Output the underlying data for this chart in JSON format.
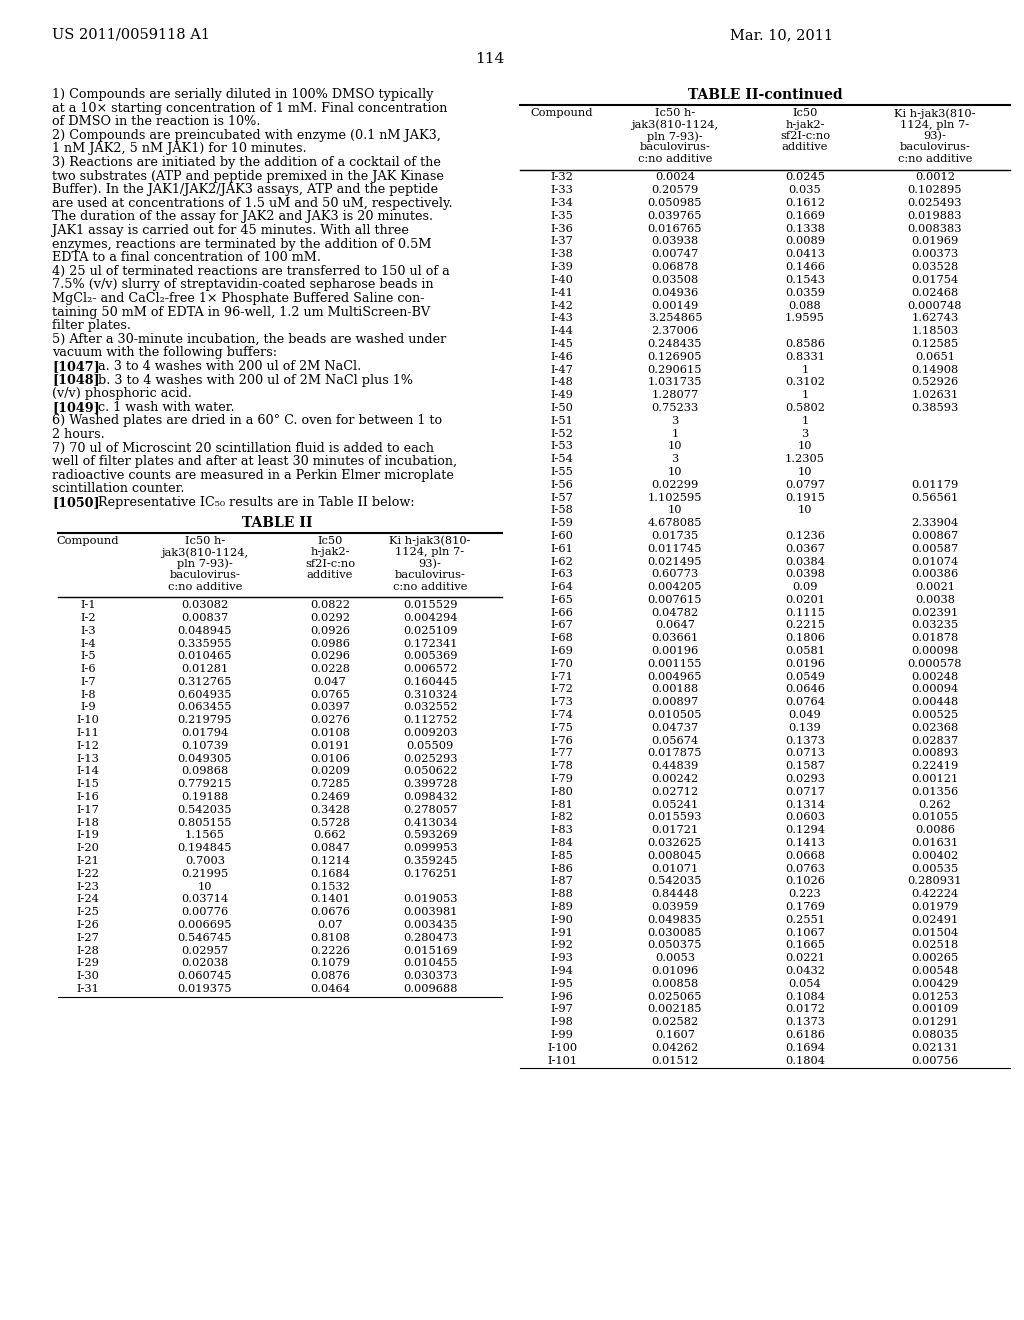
{
  "header_left": "US 2011/0059118 A1",
  "header_right": "Mar. 10, 2011",
  "page_number": "114",
  "body_text_lines": [
    {
      "text": "1) Compounds are serially diluted in 100% DMSO typically",
      "bold_prefix": ""
    },
    {
      "text": "at a 10× starting concentration of 1 mM. Final concentration",
      "bold_prefix": ""
    },
    {
      "text": "of DMSO in the reaction is 10%.",
      "bold_prefix": ""
    },
    {
      "text": "2) Compounds are preincubated with enzyme (0.1 nM JAK3,",
      "bold_prefix": ""
    },
    {
      "text": "1 nM JAK2, 5 nM JAK1) for 10 minutes.",
      "bold_prefix": ""
    },
    {
      "text": "3) Reactions are initiated by the addition of a cocktail of the",
      "bold_prefix": ""
    },
    {
      "text": "two substrates (ATP and peptide premixed in the JAK Kinase",
      "bold_prefix": ""
    },
    {
      "text": "Buffer). In the JAK1/JAK2/JAK3 assays, ATP and the peptide",
      "bold_prefix": ""
    },
    {
      "text": "are used at concentrations of 1.5 uM and 50 uM, respectively.",
      "bold_prefix": ""
    },
    {
      "text": "The duration of the assay for JAK2 and JAK3 is 20 minutes.",
      "bold_prefix": ""
    },
    {
      "text": "JAK1 assay is carried out for 45 minutes. With all three",
      "bold_prefix": ""
    },
    {
      "text": "enzymes, reactions are terminated by the addition of 0.5M",
      "bold_prefix": ""
    },
    {
      "text": "EDTA to a final concentration of 100 mM.",
      "bold_prefix": ""
    },
    {
      "text": "4) 25 ul of terminated reactions are transferred to 150 ul of a",
      "bold_prefix": ""
    },
    {
      "text": "7.5% (v/v) slurry of streptavidin-coated sepharose beads in",
      "bold_prefix": ""
    },
    {
      "text": "MgCl₂- and CaCl₂-free 1× Phosphate Buffered Saline con-",
      "bold_prefix": ""
    },
    {
      "text": "taining 50 mM of EDTA in 96-well, 1.2 um MultiScreen-BV",
      "bold_prefix": ""
    },
    {
      "text": "filter plates.",
      "bold_prefix": ""
    },
    {
      "text": "5) After a 30-minute incubation, the beads are washed under",
      "bold_prefix": ""
    },
    {
      "text": "vacuum with the following buffers:",
      "bold_prefix": ""
    },
    {
      "text": "   a. 3 to 4 washes with 200 ul of 2M NaCl.",
      "bold_prefix": "[1047]"
    },
    {
      "text": "   b. 3 to 4 washes with 200 ul of 2M NaCl plus 1%",
      "bold_prefix": "[1048]"
    },
    {
      "text": "(v/v) phosphoric acid.",
      "bold_prefix": ""
    },
    {
      "text": "   c. 1 wash with water.",
      "bold_prefix": "[1049]"
    },
    {
      "text": "6) Washed plates are dried in a 60° C. oven for between 1 to",
      "bold_prefix": ""
    },
    {
      "text": "2 hours.",
      "bold_prefix": ""
    },
    {
      "text": "7) 70 ul of Microscint 20 scintillation fluid is added to each",
      "bold_prefix": ""
    },
    {
      "text": "well of filter plates and after at least 30 minutes of incubation,",
      "bold_prefix": ""
    },
    {
      "text": "radioactive counts are measured in a Perkin Elmer microplate",
      "bold_prefix": ""
    },
    {
      "text": "scintillation counter.",
      "bold_prefix": ""
    },
    {
      "text": "   Representative IC₅₀ results are in Table II below:",
      "bold_prefix": "[1050]"
    }
  ],
  "table1_title": "TABLE II",
  "table1_col_headers": [
    "Compound",
    "Ic50 h-\njak3(810-1124,\npln 7-93)-\nbaculovirus-\nc:no additive",
    "Ic50\nh-jak2-\nsf2I-c:no\nadditive",
    "Ki h-jak3(810-\n1124, pln 7-\n93)-\nbaculovirus-\nc:no additive"
  ],
  "table1_data": [
    [
      "I-1",
      "0.03082",
      "0.0822",
      "0.015529"
    ],
    [
      "I-2",
      "0.00837",
      "0.0292",
      "0.004294"
    ],
    [
      "I-3",
      "0.048945",
      "0.0926",
      "0.025109"
    ],
    [
      "I-4",
      "0.335955",
      "0.0986",
      "0.172341"
    ],
    [
      "I-5",
      "0.010465",
      "0.0296",
      "0.005369"
    ],
    [
      "I-6",
      "0.01281",
      "0.0228",
      "0.006572"
    ],
    [
      "I-7",
      "0.312765",
      "0.047",
      "0.160445"
    ],
    [
      "I-8",
      "0.604935",
      "0.0765",
      "0.310324"
    ],
    [
      "I-9",
      "0.063455",
      "0.0397",
      "0.032552"
    ],
    [
      "I-10",
      "0.219795",
      "0.0276",
      "0.112752"
    ],
    [
      "I-11",
      "0.01794",
      "0.0108",
      "0.009203"
    ],
    [
      "I-12",
      "0.10739",
      "0.0191",
      "0.05509"
    ],
    [
      "I-13",
      "0.049305",
      "0.0106",
      "0.025293"
    ],
    [
      "I-14",
      "0.09868",
      "0.0209",
      "0.050622"
    ],
    [
      "I-15",
      "0.779215",
      "0.7285",
      "0.399728"
    ],
    [
      "I-16",
      "0.19188",
      "0.2469",
      "0.098432"
    ],
    [
      "I-17",
      "0.542035",
      "0.3428",
      "0.278057"
    ],
    [
      "I-18",
      "0.805155",
      "0.5728",
      "0.413034"
    ],
    [
      "I-19",
      "1.1565",
      "0.662",
      "0.593269"
    ],
    [
      "I-20",
      "0.194845",
      "0.0847",
      "0.099953"
    ],
    [
      "I-21",
      "0.7003",
      "0.1214",
      "0.359245"
    ],
    [
      "I-22",
      "0.21995",
      "0.1684",
      "0.176251"
    ],
    [
      "I-23",
      "10",
      "0.1532",
      ""
    ],
    [
      "I-24",
      "0.03714",
      "0.1401",
      "0.019053"
    ],
    [
      "I-25",
      "0.00776",
      "0.0676",
      "0.003981"
    ],
    [
      "I-26",
      "0.006695",
      "0.07",
      "0.003435"
    ],
    [
      "I-27",
      "0.546745",
      "0.8108",
      "0.280473"
    ],
    [
      "I-28",
      "0.02957",
      "0.2226",
      "0.015169"
    ],
    [
      "I-29",
      "0.02038",
      "0.1079",
      "0.010455"
    ],
    [
      "I-30",
      "0.060745",
      "0.0876",
      "0.030373"
    ],
    [
      "I-31",
      "0.019375",
      "0.0464",
      "0.009688"
    ]
  ],
  "table2_title": "TABLE II-continued",
  "table2_data": [
    [
      "I-32",
      "0.0024",
      "0.0245",
      "0.0012"
    ],
    [
      "I-33",
      "0.20579",
      "0.035",
      "0.102895"
    ],
    [
      "I-34",
      "0.050985",
      "0.1612",
      "0.025493"
    ],
    [
      "I-35",
      "0.039765",
      "0.1669",
      "0.019883"
    ],
    [
      "I-36",
      "0.016765",
      "0.1338",
      "0.008383"
    ],
    [
      "I-37",
      "0.03938",
      "0.0089",
      "0.01969"
    ],
    [
      "I-38",
      "0.00747",
      "0.0413",
      "0.00373"
    ],
    [
      "I-39",
      "0.06878",
      "0.1466",
      "0.03528"
    ],
    [
      "I-40",
      "0.03508",
      "0.1543",
      "0.01754"
    ],
    [
      "I-41",
      "0.04936",
      "0.0359",
      "0.02468"
    ],
    [
      "I-42",
      "0.00149",
      "0.088",
      "0.000748"
    ],
    [
      "I-43",
      "3.254865",
      "1.9595",
      "1.62743"
    ],
    [
      "I-44",
      "2.37006",
      "",
      "1.18503"
    ],
    [
      "I-45",
      "0.248435",
      "0.8586",
      "0.12585"
    ],
    [
      "I-46",
      "0.126905",
      "0.8331",
      "0.0651"
    ],
    [
      "I-47",
      "0.290615",
      "1",
      "0.14908"
    ],
    [
      "I-48",
      "1.031735",
      "0.3102",
      "0.52926"
    ],
    [
      "I-49",
      "1.28077",
      "1",
      "1.02631"
    ],
    [
      "I-50",
      "0.75233",
      "0.5802",
      "0.38593"
    ],
    [
      "I-51",
      "3",
      "1",
      ""
    ],
    [
      "I-52",
      "1",
      "3",
      ""
    ],
    [
      "I-53",
      "10",
      "10",
      ""
    ],
    [
      "I-54",
      "3",
      "1.2305",
      ""
    ],
    [
      "I-55",
      "10",
      "10",
      ""
    ],
    [
      "I-56",
      "0.02299",
      "0.0797",
      "0.01179"
    ],
    [
      "I-57",
      "1.102595",
      "0.1915",
      "0.56561"
    ],
    [
      "I-58",
      "10",
      "10",
      ""
    ],
    [
      "I-59",
      "4.678085",
      "",
      "2.33904"
    ],
    [
      "I-60",
      "0.01735",
      "0.1236",
      "0.00867"
    ],
    [
      "I-61",
      "0.011745",
      "0.0367",
      "0.00587"
    ],
    [
      "I-62",
      "0.021495",
      "0.0384",
      "0.01074"
    ],
    [
      "I-63",
      "0.60773",
      "0.0398",
      "0.00386"
    ],
    [
      "I-64",
      "0.004205",
      "0.09",
      "0.0021"
    ],
    [
      "I-65",
      "0.007615",
      "0.0201",
      "0.0038"
    ],
    [
      "I-66",
      "0.04782",
      "0.1115",
      "0.02391"
    ],
    [
      "I-67",
      "0.0647",
      "0.2215",
      "0.03235"
    ],
    [
      "I-68",
      "0.03661",
      "0.1806",
      "0.01878"
    ],
    [
      "I-69",
      "0.00196",
      "0.0581",
      "0.00098"
    ],
    [
      "I-70",
      "0.001155",
      "0.0196",
      "0.000578"
    ],
    [
      "I-71",
      "0.004965",
      "0.0549",
      "0.00248"
    ],
    [
      "I-72",
      "0.00188",
      "0.0646",
      "0.00094"
    ],
    [
      "I-73",
      "0.00897",
      "0.0764",
      "0.00448"
    ],
    [
      "I-74",
      "0.010505",
      "0.049",
      "0.00525"
    ],
    [
      "I-75",
      "0.04737",
      "0.139",
      "0.02368"
    ],
    [
      "I-76",
      "0.05674",
      "0.1373",
      "0.02837"
    ],
    [
      "I-77",
      "0.017875",
      "0.0713",
      "0.00893"
    ],
    [
      "I-78",
      "0.44839",
      "0.1587",
      "0.22419"
    ],
    [
      "I-79",
      "0.00242",
      "0.0293",
      "0.00121"
    ],
    [
      "I-80",
      "0.02712",
      "0.0717",
      "0.01356"
    ],
    [
      "I-81",
      "0.05241",
      "0.1314",
      "0.262"
    ],
    [
      "I-82",
      "0.015593",
      "0.0603",
      "0.01055"
    ],
    [
      "I-83",
      "0.01721",
      "0.1294",
      "0.0086"
    ],
    [
      "I-84",
      "0.032625",
      "0.1413",
      "0.01631"
    ],
    [
      "I-85",
      "0.008045",
      "0.0668",
      "0.00402"
    ],
    [
      "I-86",
      "0.01071",
      "0.0763",
      "0.00535"
    ],
    [
      "I-87",
      "0.542035",
      "0.1026",
      "0.280931"
    ],
    [
      "I-88",
      "0.84448",
      "0.223",
      "0.42224"
    ],
    [
      "I-89",
      "0.03959",
      "0.1769",
      "0.01979"
    ],
    [
      "I-90",
      "0.049835",
      "0.2551",
      "0.02491"
    ],
    [
      "I-91",
      "0.030085",
      "0.1067",
      "0.01504"
    ],
    [
      "I-92",
      "0.050375",
      "0.1665",
      "0.02518"
    ],
    [
      "I-93",
      "0.0053",
      "0.0221",
      "0.00265"
    ],
    [
      "I-94",
      "0.01096",
      "0.0432",
      "0.00548"
    ],
    [
      "I-95",
      "0.00858",
      "0.054",
      "0.00429"
    ],
    [
      "I-96",
      "0.025065",
      "0.1084",
      "0.01253"
    ],
    [
      "I-97",
      "0.002185",
      "0.0172",
      "0.00109"
    ],
    [
      "I-98",
      "0.02582",
      "0.1373",
      "0.01291"
    ],
    [
      "I-99",
      "0.1607",
      "0.6186",
      "0.08035"
    ],
    [
      "I-100",
      "0.04262",
      "0.1694",
      "0.02131"
    ],
    [
      "I-101",
      "0.01512",
      "0.1804",
      "0.00756"
    ]
  ],
  "bg": "#ffffff",
  "fg": "#000000"
}
